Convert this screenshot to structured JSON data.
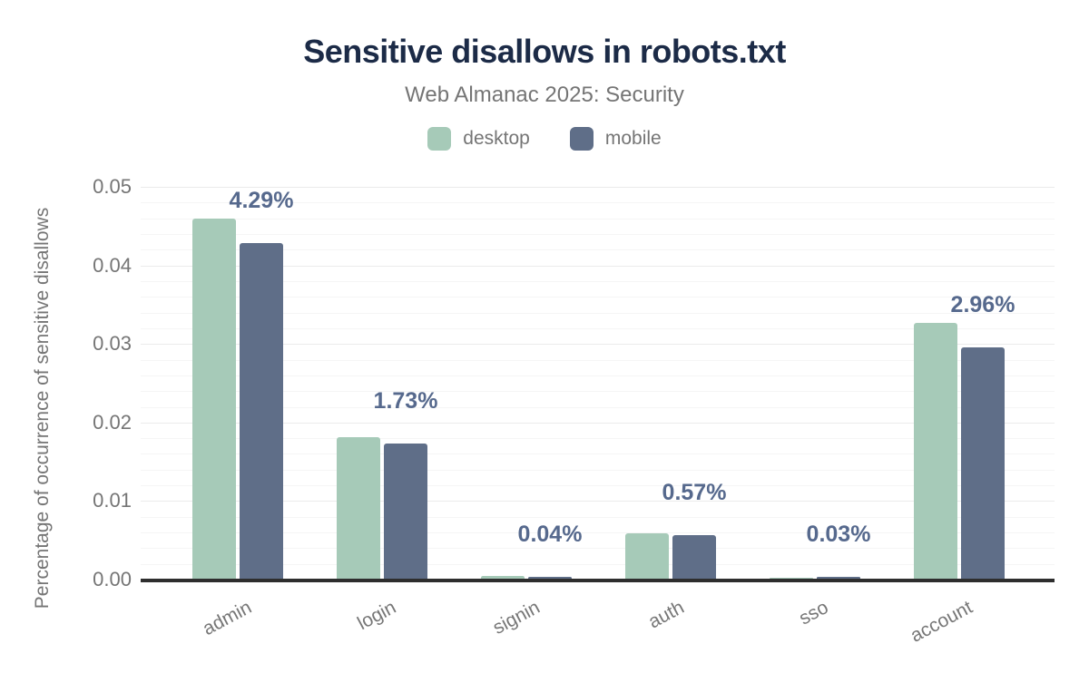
{
  "chart_data": {
    "type": "bar",
    "title": "Sensitive disallows in robots.txt",
    "subtitle": "Web Almanac 2025: Security",
    "ylabel": "Percentage of occurrence of sensitive disallows",
    "xlabel": "",
    "categories": [
      "admin",
      "login",
      "signin",
      "auth",
      "sso",
      "account"
    ],
    "series": [
      {
        "name": "desktop",
        "color": "#a6cab8",
        "values": [
          0.046,
          0.0181,
          0.0005,
          0.0059,
          0.0002,
          0.0327
        ]
      },
      {
        "name": "mobile",
        "color": "#5f6e88",
        "values": [
          0.0429,
          0.0173,
          0.0004,
          0.0057,
          0.0003,
          0.0296
        ]
      }
    ],
    "data_labels": [
      "4.29%",
      "1.73%",
      "0.04%",
      "0.57%",
      "0.03%",
      "2.96%"
    ],
    "data_label_series": "mobile",
    "yticks": [
      "0.00",
      "0.01",
      "0.02",
      "0.03",
      "0.04",
      "0.05"
    ],
    "ylim": [
      0,
      0.05
    ],
    "grid": "horizontal, minor lines every 0.002",
    "legend_position": "top-center",
    "colors": {
      "title": "#1c2b47",
      "data_label": "#56698d",
      "axis_line": "#2e2e2e",
      "muted_text": "#757575"
    }
  }
}
